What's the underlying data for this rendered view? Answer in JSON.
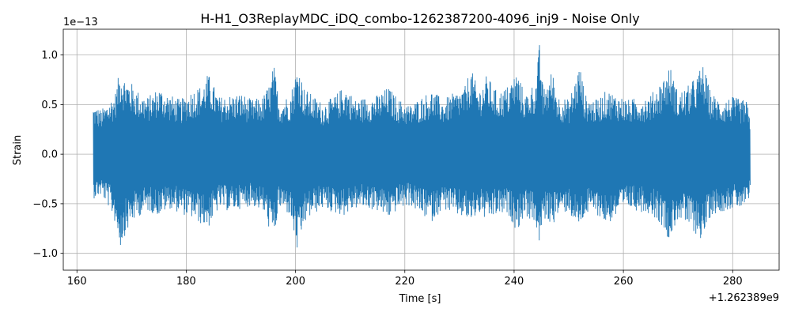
{
  "chart_data": {
    "type": "line",
    "title": "H-H1_O3ReplayMDC_iDQ_combo-1262387200-4096_inj9 - Noise Only",
    "xlabel": "Time [s]",
    "ylabel": "Strain",
    "x_offset_label": "+1.262389e9",
    "y_scale_label": "1e−13",
    "xlim": [
      157.5,
      288.5
    ],
    "ylim": [
      -1.17,
      1.26
    ],
    "x_ticks": [
      {
        "value": 160,
        "label": "160"
      },
      {
        "value": 180,
        "label": "180"
      },
      {
        "value": 200,
        "label": "200"
      },
      {
        "value": 220,
        "label": "220"
      },
      {
        "value": 240,
        "label": "240"
      },
      {
        "value": 260,
        "label": "260"
      },
      {
        "value": 280,
        "label": "280"
      }
    ],
    "y_ticks": [
      {
        "value": 1.0,
        "label": "1.0"
      },
      {
        "value": 0.5,
        "label": "0.5"
      },
      {
        "value": 0.0,
        "label": "0.0"
      },
      {
        "value": -0.5,
        "label": "−0.5"
      },
      {
        "value": -1.0,
        "label": "−1.0"
      }
    ],
    "grid": true,
    "series": [
      {
        "color": "#1f77b4",
        "x_range": [
          163.0,
          283.2
        ],
        "upper_envelope": [
          [
            163.0,
            0.5
          ],
          [
            164.5,
            0.45
          ],
          [
            166.0,
            0.55
          ],
          [
            167.0,
            0.62
          ],
          [
            168.0,
            0.9
          ],
          [
            168.5,
            0.8
          ],
          [
            170.0,
            0.72
          ],
          [
            171.5,
            0.62
          ],
          [
            173.0,
            0.58
          ],
          [
            175.0,
            0.68
          ],
          [
            177.0,
            0.6
          ],
          [
            179.0,
            0.55
          ],
          [
            181.0,
            0.65
          ],
          [
            183.0,
            0.7
          ],
          [
            184.0,
            0.82
          ],
          [
            186.0,
            0.58
          ],
          [
            188.0,
            0.6
          ],
          [
            190.0,
            0.62
          ],
          [
            192.0,
            0.55
          ],
          [
            194.0,
            0.58
          ],
          [
            195.5,
            0.75
          ],
          [
            196.0,
            0.92
          ],
          [
            197.0,
            0.55
          ],
          [
            199.0,
            0.6
          ],
          [
            200.5,
            0.93
          ],
          [
            201.5,
            0.68
          ],
          [
            203.0,
            0.6
          ],
          [
            205.0,
            0.52
          ],
          [
            207.0,
            0.58
          ],
          [
            209.0,
            0.7
          ],
          [
            211.0,
            0.55
          ],
          [
            213.0,
            0.58
          ],
          [
            215.0,
            0.6
          ],
          [
            217.0,
            0.68
          ],
          [
            219.0,
            0.55
          ],
          [
            221.0,
            0.5
          ],
          [
            223.0,
            0.58
          ],
          [
            225.0,
            0.65
          ],
          [
            227.0,
            0.55
          ],
          [
            229.0,
            0.62
          ],
          [
            231.0,
            0.68
          ],
          [
            232.0,
            0.88
          ],
          [
            233.5,
            0.65
          ],
          [
            235.0,
            0.8
          ],
          [
            237.0,
            0.62
          ],
          [
            239.0,
            0.7
          ],
          [
            240.5,
            0.85
          ],
          [
            242.0,
            0.6
          ],
          [
            244.0,
            0.75
          ],
          [
            244.7,
            1.15
          ],
          [
            245.3,
            0.65
          ],
          [
            247.0,
            0.85
          ],
          [
            248.0,
            0.6
          ],
          [
            250.0,
            0.55
          ],
          [
            251.0,
            0.72
          ],
          [
            252.0,
            0.92
          ],
          [
            253.0,
            0.6
          ],
          [
            255.0,
            0.55
          ],
          [
            257.0,
            0.65
          ],
          [
            259.0,
            0.6
          ],
          [
            261.0,
            0.55
          ],
          [
            263.0,
            0.58
          ],
          [
            265.0,
            0.6
          ],
          [
            267.0,
            0.75
          ],
          [
            268.5,
            0.9
          ],
          [
            270.0,
            0.62
          ],
          [
            272.0,
            0.7
          ],
          [
            273.5,
            0.8
          ],
          [
            274.5,
            0.92
          ],
          [
            276.0,
            0.62
          ],
          [
            278.0,
            0.55
          ],
          [
            280.0,
            0.58
          ],
          [
            281.5,
            0.55
          ],
          [
            282.5,
            0.55
          ],
          [
            283.2,
            0.35
          ]
        ],
        "lower_envelope": [
          [
            163.0,
            -0.45
          ],
          [
            164.5,
            -0.42
          ],
          [
            166.0,
            -0.55
          ],
          [
            167.0,
            -0.7
          ],
          [
            168.0,
            -0.95
          ],
          [
            168.5,
            -0.85
          ],
          [
            170.0,
            -0.7
          ],
          [
            171.5,
            -0.62
          ],
          [
            173.0,
            -0.58
          ],
          [
            175.0,
            -0.62
          ],
          [
            177.0,
            -0.55
          ],
          [
            179.0,
            -0.6
          ],
          [
            181.0,
            -0.65
          ],
          [
            183.0,
            -0.72
          ],
          [
            184.0,
            -0.75
          ],
          [
            186.0,
            -0.55
          ],
          [
            188.0,
            -0.58
          ],
          [
            190.0,
            -0.55
          ],
          [
            192.0,
            -0.52
          ],
          [
            194.0,
            -0.58
          ],
          [
            195.5,
            -0.8
          ],
          [
            196.0,
            -0.88
          ],
          [
            197.0,
            -0.55
          ],
          [
            199.0,
            -0.62
          ],
          [
            200.5,
            -1.05
          ],
          [
            201.5,
            -0.72
          ],
          [
            203.0,
            -0.62
          ],
          [
            205.0,
            -0.55
          ],
          [
            207.0,
            -0.6
          ],
          [
            209.0,
            -0.62
          ],
          [
            211.0,
            -0.55
          ],
          [
            213.0,
            -0.55
          ],
          [
            215.0,
            -0.58
          ],
          [
            217.0,
            -0.65
          ],
          [
            219.0,
            -0.55
          ],
          [
            221.0,
            -0.52
          ],
          [
            223.0,
            -0.62
          ],
          [
            225.0,
            -0.68
          ],
          [
            227.0,
            -0.55
          ],
          [
            229.0,
            -0.62
          ],
          [
            231.0,
            -0.65
          ],
          [
            232.0,
            -0.7
          ],
          [
            233.5,
            -0.6
          ],
          [
            235.0,
            -0.68
          ],
          [
            237.0,
            -0.62
          ],
          [
            239.0,
            -0.62
          ],
          [
            240.5,
            -0.78
          ],
          [
            242.0,
            -0.62
          ],
          [
            244.0,
            -0.72
          ],
          [
            244.7,
            -0.98
          ],
          [
            245.3,
            -0.65
          ],
          [
            247.0,
            -0.72
          ],
          [
            248.0,
            -0.62
          ],
          [
            250.0,
            -0.58
          ],
          [
            251.0,
            -0.7
          ],
          [
            252.0,
            -0.75
          ],
          [
            253.0,
            -0.62
          ],
          [
            255.0,
            -0.6
          ],
          [
            257.0,
            -0.72
          ],
          [
            259.0,
            -0.62
          ],
          [
            261.0,
            -0.55
          ],
          [
            263.0,
            -0.58
          ],
          [
            265.0,
            -0.6
          ],
          [
            267.0,
            -0.72
          ],
          [
            268.5,
            -0.88
          ],
          [
            270.0,
            -0.65
          ],
          [
            272.0,
            -0.75
          ],
          [
            273.5,
            -0.82
          ],
          [
            274.5,
            -0.88
          ],
          [
            276.0,
            -0.62
          ],
          [
            278.0,
            -0.58
          ],
          [
            280.0,
            -0.55
          ],
          [
            281.5,
            -0.55
          ],
          [
            282.5,
            -0.55
          ],
          [
            283.2,
            -0.45
          ]
        ]
      }
    ]
  }
}
